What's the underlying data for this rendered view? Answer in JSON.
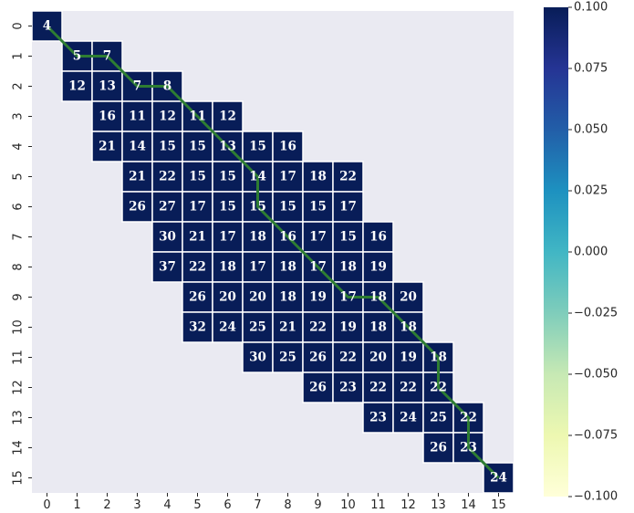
{
  "chart_data": {
    "type": "heatmap",
    "title": "",
    "xlabel": "",
    "ylabel": "",
    "x_ticks": [
      "0",
      "1",
      "2",
      "3",
      "4",
      "5",
      "6",
      "7",
      "8",
      "9",
      "10",
      "11",
      "12",
      "13",
      "14",
      "15"
    ],
    "y_ticks": [
      "0",
      "1",
      "2",
      "3",
      "4",
      "5",
      "6",
      "7",
      "8",
      "9",
      "10",
      "11",
      "12",
      "13",
      "14",
      "15"
    ],
    "background_color": "#eaeaf2",
    "cell_color": "#081d58",
    "path_color": "#2e7d32",
    "colormap": "YlGnBu",
    "colorbar": {
      "range": [
        -0.1,
        0.1
      ],
      "ticks": [
        "0.100",
        "0.075",
        "0.050",
        "0.025",
        "0.000",
        "−0.025",
        "−0.050",
        "−0.075",
        "−0.100"
      ],
      "tick_values": [
        0.1,
        0.075,
        0.05,
        0.025,
        0.0,
        -0.025,
        -0.05,
        -0.075,
        -0.1
      ]
    },
    "grid": false,
    "rows": [
      [
        [
          0,
          4
        ]
      ],
      [
        [
          1,
          5
        ],
        [
          2,
          7
        ]
      ],
      [
        [
          1,
          12
        ],
        [
          2,
          13
        ],
        [
          3,
          7
        ],
        [
          4,
          8
        ]
      ],
      [
        [
          2,
          16
        ],
        [
          3,
          11
        ],
        [
          4,
          12
        ],
        [
          5,
          11
        ],
        [
          6,
          12
        ]
      ],
      [
        [
          2,
          21
        ],
        [
          3,
          14
        ],
        [
          4,
          15
        ],
        [
          5,
          15
        ],
        [
          6,
          13
        ],
        [
          7,
          15
        ],
        [
          8,
          16
        ]
      ],
      [
        [
          3,
          21
        ],
        [
          4,
          22
        ],
        [
          5,
          15
        ],
        [
          6,
          15
        ],
        [
          7,
          14
        ],
        [
          8,
          17
        ],
        [
          9,
          18
        ],
        [
          10,
          22
        ]
      ],
      [
        [
          3,
          26
        ],
        [
          4,
          27
        ],
        [
          5,
          17
        ],
        [
          6,
          15
        ],
        [
          7,
          15
        ],
        [
          8,
          15
        ],
        [
          9,
          15
        ],
        [
          10,
          17
        ]
      ],
      [
        [
          4,
          30
        ],
        [
          5,
          21
        ],
        [
          6,
          17
        ],
        [
          7,
          18
        ],
        [
          8,
          16
        ],
        [
          9,
          17
        ],
        [
          10,
          15
        ],
        [
          11,
          16
        ]
      ],
      [
        [
          4,
          37
        ],
        [
          5,
          22
        ],
        [
          6,
          18
        ],
        [
          7,
          17
        ],
        [
          8,
          18
        ],
        [
          9,
          17
        ],
        [
          10,
          18
        ],
        [
          11,
          19
        ]
      ],
      [
        [
          5,
          26
        ],
        [
          6,
          20
        ],
        [
          7,
          20
        ],
        [
          8,
          18
        ],
        [
          9,
          19
        ],
        [
          10,
          17
        ],
        [
          11,
          18
        ],
        [
          12,
          20
        ]
      ],
      [
        [
          5,
          32
        ],
        [
          6,
          24
        ],
        [
          7,
          25
        ],
        [
          8,
          21
        ],
        [
          9,
          22
        ],
        [
          10,
          19
        ],
        [
          11,
          18
        ],
        [
          12,
          18
        ]
      ],
      [
        [
          7,
          30
        ],
        [
          8,
          25
        ],
        [
          9,
          26
        ],
        [
          10,
          22
        ],
        [
          11,
          20
        ],
        [
          12,
          19
        ],
        [
          13,
          18
        ]
      ],
      [
        [
          9,
          26
        ],
        [
          10,
          23
        ],
        [
          11,
          22
        ],
        [
          12,
          22
        ],
        [
          13,
          22
        ]
      ],
      [
        [
          11,
          23
        ],
        [
          12,
          24
        ],
        [
          13,
          25
        ],
        [
          14,
          22
        ]
      ],
      [
        [
          13,
          26
        ],
        [
          14,
          23
        ]
      ],
      [
        [
          15,
          24
        ]
      ]
    ],
    "path": [
      [
        0,
        0
      ],
      [
        1,
        1
      ],
      [
        1,
        2
      ],
      [
        2,
        3
      ],
      [
        2,
        4
      ],
      [
        3,
        5
      ],
      [
        4,
        6
      ],
      [
        5,
        7
      ],
      [
        6,
        7
      ],
      [
        7,
        8
      ],
      [
        8,
        9
      ],
      [
        9,
        10
      ],
      [
        9,
        11
      ],
      [
        10,
        12
      ],
      [
        11,
        13
      ],
      [
        12,
        13
      ],
      [
        13,
        14
      ],
      [
        14,
        14
      ],
      [
        15,
        15
      ]
    ]
  }
}
